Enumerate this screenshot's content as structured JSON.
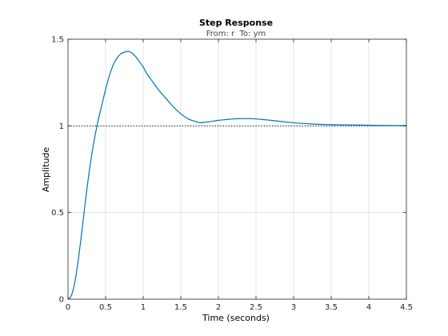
{
  "chart_data": {
    "type": "line",
    "title": "Step Response",
    "subtitle": "From: r  To: ym",
    "xlabel": "Time (seconds)",
    "ylabel": "Amplitude",
    "xlim": [
      0,
      4.5
    ],
    "ylim": [
      0,
      1.5
    ],
    "xticks": [
      0,
      0.5,
      1,
      1.5,
      2,
      2.5,
      3,
      3.5,
      4,
      4.5
    ],
    "xtick_labels": [
      "0",
      "0.5",
      "1",
      "1.5",
      "2",
      "2.5",
      "3",
      "3.5",
      "4",
      "4.5"
    ],
    "yticks": [
      0,
      0.5,
      1,
      1.5
    ],
    "ytick_labels": [
      "0",
      "0.5",
      "1",
      "1.5"
    ],
    "grid": true,
    "reference_line": {
      "y": 1,
      "style": "dotted",
      "color": "#000000"
    },
    "series": [
      {
        "color": "#0072BD",
        "x": [
          0,
          0.03,
          0.06,
          0.1,
          0.15,
          0.2,
          0.25,
          0.3,
          0.35,
          0.4,
          0.45,
          0.5,
          0.55,
          0.6,
          0.65,
          0.7,
          0.75,
          0.8,
          0.85,
          0.9,
          0.95,
          1.0,
          1.05,
          1.1,
          1.2,
          1.3,
          1.4,
          1.5,
          1.6,
          1.7,
          1.75,
          1.8,
          1.9,
          2.0,
          2.1,
          2.2,
          2.3,
          2.4,
          2.5,
          2.6,
          2.7,
          2.8,
          2.9,
          3.0,
          3.2,
          3.4,
          3.6,
          3.8,
          4.0,
          4.2,
          4.5
        ],
        "y": [
          0,
          0.01,
          0.04,
          0.12,
          0.27,
          0.45,
          0.63,
          0.79,
          0.92,
          1.03,
          1.12,
          1.21,
          1.29,
          1.35,
          1.39,
          1.415,
          1.425,
          1.43,
          1.42,
          1.4,
          1.37,
          1.34,
          1.3,
          1.27,
          1.21,
          1.16,
          1.11,
          1.07,
          1.04,
          1.025,
          1.018,
          1.02,
          1.025,
          1.032,
          1.036,
          1.04,
          1.042,
          1.042,
          1.04,
          1.036,
          1.032,
          1.027,
          1.022,
          1.018,
          1.012,
          1.008,
          1.006,
          1.005,
          1.004,
          1.002,
          1.002
        ]
      }
    ]
  }
}
